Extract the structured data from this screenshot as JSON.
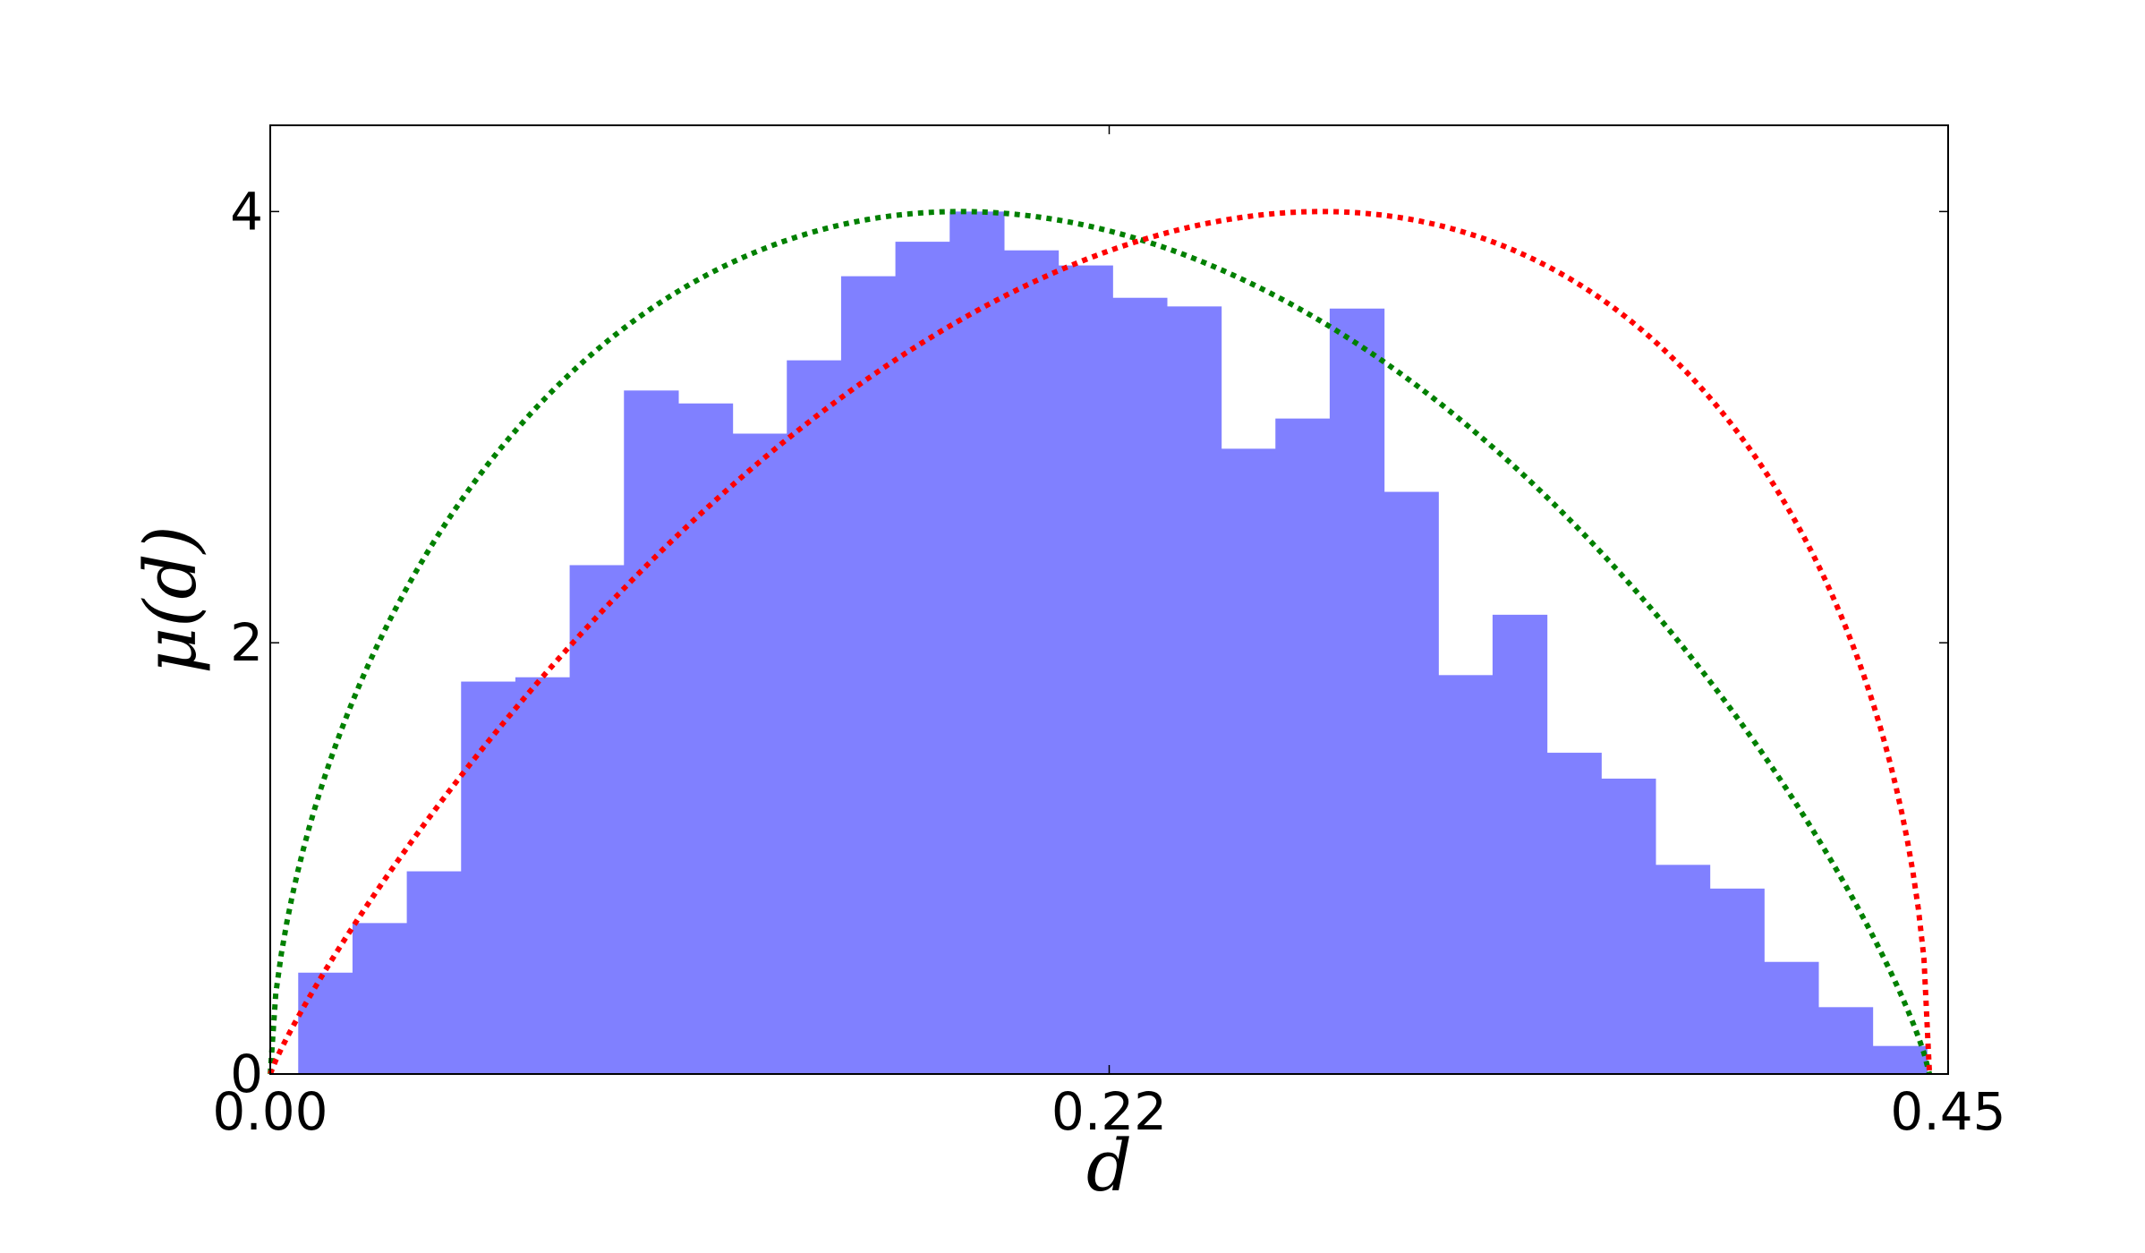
{
  "chart_data": {
    "type": "bar",
    "title": "",
    "xlabel": "d",
    "ylabel": "μ(d)",
    "xlim": [
      0.0,
      0.45
    ],
    "ylim": [
      0,
      4.4
    ],
    "xticks": [
      {
        "value": 0.0,
        "label": "0.00"
      },
      {
        "value": 0.225,
        "label": "0.22"
      },
      {
        "value": 0.45,
        "label": "0.45"
      }
    ],
    "yticks": [
      {
        "value": 0,
        "label": "0"
      },
      {
        "value": 2,
        "label": "2"
      },
      {
        "value": 4,
        "label": "4"
      }
    ],
    "grid": false,
    "legend": "none",
    "histogram": {
      "color": "#8080ff",
      "bin_start": 0.0075,
      "bin_width": 0.01456,
      "values": [
        0.47,
        0.7,
        0.94,
        1.82,
        1.84,
        2.36,
        3.17,
        3.11,
        2.97,
        3.31,
        3.7,
        3.86,
        4.0,
        3.82,
        3.75,
        3.6,
        3.56,
        2.9,
        3.04,
        3.55,
        2.7,
        1.85,
        2.13,
        1.49,
        1.37,
        0.97,
        0.86,
        0.52,
        0.31,
        0.13
      ]
    },
    "curves": [
      {
        "color": "#008000",
        "style": "dotted",
        "x_start": 0.0,
        "x_end": 0.445,
        "peak_x": 0.185,
        "peak_y": 4.0
      },
      {
        "color": "#ff0000",
        "style": "dotted",
        "x_start": 0.0,
        "x_end": 0.445,
        "peak_x": 0.282,
        "peak_y": 4.0
      }
    ]
  }
}
